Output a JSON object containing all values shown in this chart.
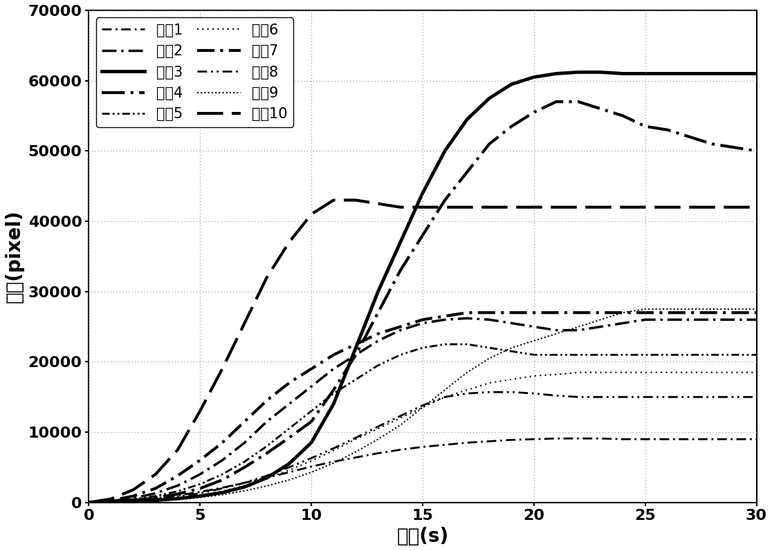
{
  "title": "",
  "xlabel": "时间(s)",
  "ylabel": "像素(pixel)",
  "xlim": [
    0,
    30
  ],
  "ylim": [
    0,
    70000
  ],
  "xticks": [
    0,
    5,
    10,
    15,
    20,
    25,
    30
  ],
  "yticks": [
    0,
    10000,
    20000,
    30000,
    40000,
    50000,
    60000,
    70000
  ],
  "series": [
    {
      "name": "序列1",
      "style_idx": 0,
      "x": [
        0,
        1,
        2,
        3,
        4,
        5,
        6,
        7,
        8,
        9,
        10,
        11,
        12,
        13,
        14,
        15,
        16,
        17,
        18,
        19,
        20,
        21,
        22,
        23,
        24,
        25,
        26,
        27,
        28,
        29,
        30
      ],
      "y": [
        0,
        100,
        300,
        600,
        1000,
        1500,
        2100,
        2800,
        3500,
        4300,
        5100,
        5800,
        6400,
        7000,
        7500,
        7900,
        8200,
        8500,
        8700,
        8900,
        9000,
        9100,
        9100,
        9100,
        9000,
        9000,
        9000,
        9000,
        9000,
        9000,
        9000
      ]
    },
    {
      "name": "序列2",
      "style_idx": 1,
      "x": [
        0,
        1,
        2,
        3,
        4,
        5,
        6,
        7,
        8,
        9,
        10,
        11,
        12,
        13,
        14,
        15,
        16,
        17,
        18,
        19,
        20,
        21,
        22,
        23,
        24,
        25,
        26,
        27,
        28,
        29,
        30
      ],
      "y": [
        0,
        200,
        600,
        1300,
        2400,
        4000,
        6000,
        8500,
        11500,
        14000,
        16500,
        19000,
        21000,
        23000,
        24500,
        25500,
        26000,
        26200,
        26000,
        25500,
        25000,
        24500,
        24500,
        25000,
        25500,
        26000,
        26000,
        26000,
        26000,
        26000,
        26000
      ]
    },
    {
      "name": "序列3",
      "style_idx": 2,
      "x": [
        0,
        1,
        2,
        3,
        4,
        5,
        6,
        7,
        8,
        9,
        10,
        11,
        12,
        13,
        14,
        15,
        16,
        17,
        18,
        19,
        20,
        21,
        22,
        23,
        24,
        25,
        26,
        27,
        28,
        29,
        30
      ],
      "y": [
        0,
        50,
        150,
        300,
        550,
        900,
        1400,
        2200,
        3500,
        5500,
        8500,
        14000,
        22000,
        30000,
        37000,
        44000,
        50000,
        54500,
        57500,
        59500,
        60500,
        61000,
        61200,
        61200,
        61000,
        61000,
        61000,
        61000,
        61000,
        61000,
        61000
      ]
    },
    {
      "name": "序列4",
      "style_idx": 3,
      "x": [
        0,
        1,
        2,
        3,
        4,
        5,
        6,
        7,
        8,
        9,
        10,
        11,
        12,
        13,
        14,
        15,
        16,
        17,
        18,
        19,
        20,
        21,
        22,
        23,
        24,
        25,
        26,
        27,
        28,
        29,
        30
      ],
      "y": [
        0,
        100,
        300,
        650,
        1200,
        2000,
        3200,
        5000,
        7000,
        9200,
        11500,
        16000,
        21000,
        27000,
        33000,
        38000,
        43000,
        47000,
        51000,
        53500,
        55500,
        57000,
        57000,
        56000,
        55000,
        53500,
        53000,
        52000,
        51000,
        50500,
        50000
      ]
    },
    {
      "name": "序列5",
      "style_idx": 4,
      "x": [
        0,
        1,
        2,
        3,
        4,
        5,
        6,
        7,
        8,
        9,
        10,
        11,
        12,
        13,
        14,
        15,
        16,
        17,
        18,
        19,
        20,
        21,
        22,
        23,
        24,
        25,
        26,
        27,
        28,
        29,
        30
      ],
      "y": [
        0,
        150,
        450,
        900,
        1600,
        2600,
        4000,
        5800,
        8000,
        10500,
        13000,
        15500,
        17500,
        19500,
        21000,
        22000,
        22500,
        22500,
        22000,
        21500,
        21000,
        21000,
        21000,
        21000,
        21000,
        21000,
        21000,
        21000,
        21000,
        21000,
        21000
      ]
    },
    {
      "name": "序列6",
      "style_idx": 5,
      "x": [
        0,
        1,
        2,
        3,
        4,
        5,
        6,
        7,
        8,
        9,
        10,
        11,
        12,
        13,
        14,
        15,
        16,
        17,
        18,
        19,
        20,
        21,
        22,
        23,
        24,
        25,
        26,
        27,
        28,
        29,
        30
      ],
      "y": [
        0,
        50,
        150,
        320,
        600,
        1000,
        1600,
        2400,
        3400,
        4600,
        5900,
        7400,
        9000,
        10500,
        12000,
        13500,
        15000,
        16000,
        17000,
        17500,
        18000,
        18200,
        18500,
        18500,
        18500,
        18500,
        18500,
        18500,
        18500,
        18500,
        18500
      ]
    },
    {
      "name": "序列7",
      "style_idx": 6,
      "x": [
        0,
        1,
        2,
        3,
        4,
        5,
        6,
        7,
        8,
        9,
        10,
        11,
        12,
        13,
        14,
        15,
        16,
        17,
        18,
        19,
        20,
        21,
        22,
        23,
        24,
        25,
        26,
        27,
        28,
        29,
        30
      ],
      "y": [
        0,
        300,
        900,
        2000,
        3800,
        6000,
        8500,
        11500,
        14500,
        17000,
        19000,
        21000,
        22500,
        24000,
        25000,
        26000,
        26500,
        27000,
        27000,
        27000,
        27000,
        27000,
        27000,
        27000,
        27000,
        27000,
        27000,
        27000,
        27000,
        27000,
        27000
      ]
    },
    {
      "name": "序列8",
      "style_idx": 7,
      "x": [
        0,
        1,
        2,
        3,
        4,
        5,
        6,
        7,
        8,
        9,
        10,
        11,
        12,
        13,
        14,
        15,
        16,
        17,
        18,
        19,
        20,
        21,
        22,
        23,
        24,
        25,
        26,
        27,
        28,
        29,
        30
      ],
      "y": [
        0,
        80,
        220,
        450,
        800,
        1300,
        2000,
        2800,
        3800,
        5000,
        6300,
        7700,
        9200,
        10800,
        12300,
        13800,
        15000,
        15500,
        15700,
        15700,
        15500,
        15200,
        15000,
        15000,
        15000,
        15000,
        15000,
        15000,
        15000,
        15000,
        15000
      ]
    },
    {
      "name": "序列9",
      "style_idx": 8,
      "x": [
        0,
        1,
        2,
        3,
        4,
        5,
        6,
        7,
        8,
        9,
        10,
        11,
        12,
        13,
        14,
        15,
        16,
        17,
        18,
        19,
        20,
        21,
        22,
        23,
        24,
        25,
        26,
        27,
        28,
        29,
        30
      ],
      "y": [
        0,
        30,
        100,
        220,
        420,
        720,
        1100,
        1650,
        2350,
        3200,
        4300,
        5600,
        7200,
        9000,
        11000,
        13500,
        16000,
        18500,
        20500,
        22000,
        23000,
        24000,
        25000,
        26000,
        27000,
        27500,
        27500,
        27500,
        27500,
        27500,
        27500
      ]
    },
    {
      "name": "序列10",
      "style_idx": 9,
      "x": [
        0,
        1,
        2,
        3,
        4,
        5,
        6,
        7,
        8,
        9,
        10,
        11,
        12,
        13,
        14,
        15,
        16,
        17,
        18,
        19,
        20,
        21,
        22,
        23,
        24,
        25,
        26,
        27,
        28,
        29,
        30
      ],
      "y": [
        0,
        500,
        1800,
        4000,
        7500,
        13000,
        19000,
        25500,
        32000,
        37000,
        41000,
        43000,
        43000,
        42500,
        42000,
        42000,
        42000,
        42000,
        42000,
        42000,
        42000,
        42000,
        42000,
        42000,
        42000,
        42000,
        42000,
        42000,
        42000,
        42000,
        42000
      ]
    }
  ],
  "color": "black",
  "background": "white",
  "grid_color": "#888888",
  "legend_loc": "upper left",
  "xlabel_fontsize": 20,
  "ylabel_fontsize": 20,
  "tick_fontsize": 16,
  "legend_fontsize": 15
}
